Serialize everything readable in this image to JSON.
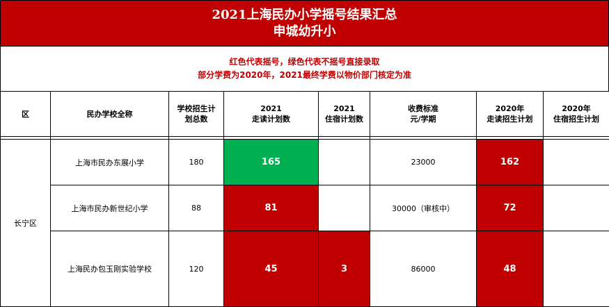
{
  "title": {
    "line1": "2021上海民办小学摇号结果汇总",
    "line2": "申城幼升小"
  },
  "notes": {
    "line1": "红色代表摇号，绿色代表不摇号直接录取",
    "line2": "部分学费为2020年，2021最终学费以物价部门核定为准"
  },
  "headers": {
    "district": "区",
    "school": "民办学校全称",
    "total_plan_l1": "学校招生计",
    "total_plan_l2": "划总数",
    "day_plan_l1": "2021",
    "day_plan_l2": "走读计划数",
    "board_plan_l1": "2021",
    "board_plan_l2": "住宿计划数",
    "fee_l1": "收费标准",
    "fee_l2": "元/学期",
    "day_2020_l1": "2020年",
    "day_2020_l2": "走读招生计划",
    "board_2020_l1": "2020年",
    "board_2020_l2": "住宿招生计划"
  },
  "district_name": "长宁区",
  "rows": [
    {
      "school": "上海市民办东展小学",
      "total": "180",
      "day_2021": "165",
      "board_2021": "",
      "fee": "23000",
      "day_2020": "162",
      "board_2020": ""
    },
    {
      "school": "上海市民办新世纪小学",
      "total": "88",
      "day_2021": "81",
      "board_2021": "",
      "fee": "30000（审核中）",
      "day_2020": "72",
      "board_2020": ""
    },
    {
      "school": "上海民办包玉刚实验学校",
      "total": "120",
      "day_2021": "45",
      "board_2021": "3",
      "fee": "86000",
      "day_2020": "48",
      "board_2020": ""
    }
  ],
  "colors": {
    "lottery_red": "#c00000",
    "direct_green": "#00b050"
  }
}
